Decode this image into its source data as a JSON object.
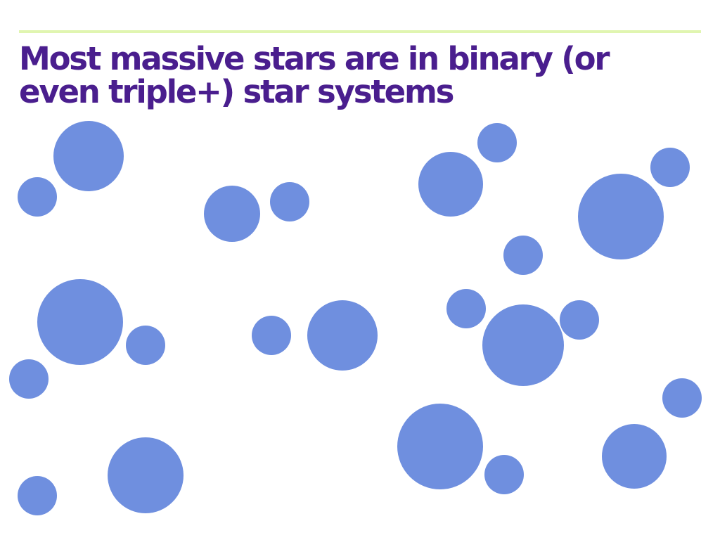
{
  "slide": {
    "title": "Most massive stars are in binary (or even triple+) star systems"
  },
  "colors": {
    "title": "#4a1e8e",
    "rule": "#e0f5b0",
    "star": "#6f8fdf",
    "background": "#ffffff"
  }
}
